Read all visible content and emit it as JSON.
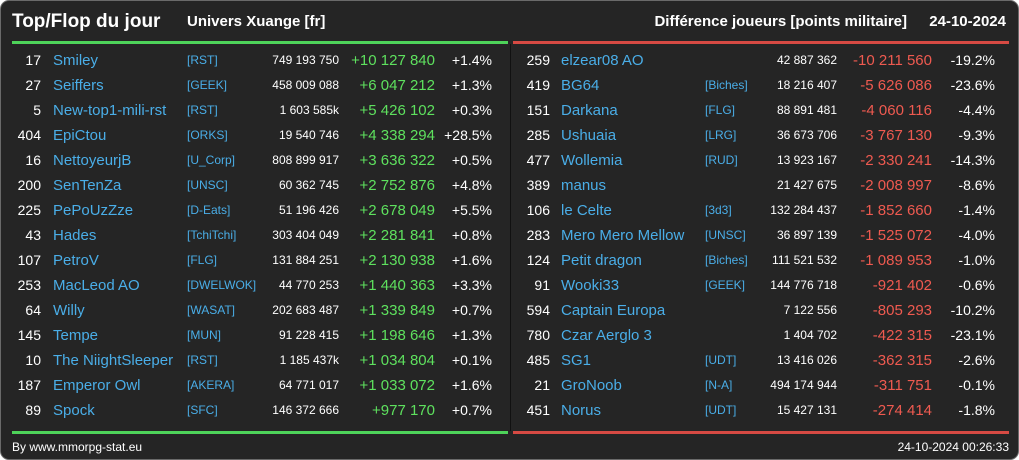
{
  "header": {
    "title": "Top/Flop du jour",
    "universe": "Univers Xuange [fr]",
    "metric": "Différence joueurs [points militaire]",
    "date": "24-10-2024"
  },
  "colors": {
    "gain": "#5ee15e",
    "loss": "#ef5a50",
    "name": "#4aaee8",
    "background": "#252525"
  },
  "top": [
    {
      "rank": "17",
      "name": "Smiley",
      "alliance": "[RST]",
      "total": "749 193 750",
      "diff": "+10 127 840",
      "pct": "+1.4%"
    },
    {
      "rank": "27",
      "name": "Seiffers",
      "alliance": "[GEEK]",
      "total": "458 009 088",
      "diff": "+6 047 212",
      "pct": "+1.3%"
    },
    {
      "rank": "5",
      "name": "New-top1-mili-rst",
      "alliance": "[RST]",
      "total": "1 603 585k",
      "diff": "+5 426 102",
      "pct": "+0.3%"
    },
    {
      "rank": "404",
      "name": "EpiCtou",
      "alliance": "[ORKS]",
      "total": "19 540 746",
      "diff": "+4 338 294",
      "pct": "+28.5%"
    },
    {
      "rank": "16",
      "name": "NettoyeurjB",
      "alliance": "[U_Corp]",
      "total": "808 899 917",
      "diff": "+3 636 322",
      "pct": "+0.5%"
    },
    {
      "rank": "200",
      "name": "SenTenZa",
      "alliance": "[UNSC]",
      "total": "60 362 745",
      "diff": "+2 752 876",
      "pct": "+4.8%"
    },
    {
      "rank": "225",
      "name": "PePoUzZze",
      "alliance": "[D-Eats]",
      "total": "51 196 426",
      "diff": "+2 678 049",
      "pct": "+5.5%"
    },
    {
      "rank": "43",
      "name": "Hades",
      "alliance": "[TchiTchi]",
      "total": "303 404 049",
      "diff": "+2 281 841",
      "pct": "+0.8%"
    },
    {
      "rank": "107",
      "name": "PetroV",
      "alliance": "[FLG]",
      "total": "131 884 251",
      "diff": "+2 130 938",
      "pct": "+1.6%"
    },
    {
      "rank": "253",
      "name": "MacLeod AO",
      "alliance": "[DWELWOK]",
      "total": "44 770 253",
      "diff": "+1 440 363",
      "pct": "+3.3%"
    },
    {
      "rank": "64",
      "name": "Willy",
      "alliance": "[WASAT]",
      "total": "202 683 487",
      "diff": "+1 339 849",
      "pct": "+0.7%"
    },
    {
      "rank": "145",
      "name": "Tempe",
      "alliance": "[MUN]",
      "total": "91 228 415",
      "diff": "+1 198 646",
      "pct": "+1.3%"
    },
    {
      "rank": "10",
      "name": "The NiightSleeper",
      "alliance": "[RST]",
      "total": "1 185 437k",
      "diff": "+1 034 804",
      "pct": "+0.1%"
    },
    {
      "rank": "187",
      "name": "Emperor Owl",
      "alliance": "[AKERA]",
      "total": "64 771 017",
      "diff": "+1 033 072",
      "pct": "+1.6%"
    },
    {
      "rank": "89",
      "name": "Spock",
      "alliance": "[SFC]",
      "total": "146 372 666",
      "diff": "+977 170",
      "pct": "+0.7%"
    }
  ],
  "flop": [
    {
      "rank": "259",
      "name": "elzear08 AO",
      "alliance": "",
      "total": "42 887 362",
      "diff": "-10 211 560",
      "pct": "-19.2%"
    },
    {
      "rank": "419",
      "name": "BG64",
      "alliance": "[Biches]",
      "total": "18 216 407",
      "diff": "-5 626 086",
      "pct": "-23.6%"
    },
    {
      "rank": "151",
      "name": "Darkana",
      "alliance": "[FLG]",
      "total": "88 891 481",
      "diff": "-4 060 116",
      "pct": "-4.4%"
    },
    {
      "rank": "285",
      "name": "Ushuaia",
      "alliance": "[LRG]",
      "total": "36 673 706",
      "diff": "-3 767 130",
      "pct": "-9.3%"
    },
    {
      "rank": "477",
      "name": "Wollemia",
      "alliance": "[RUD]",
      "total": "13 923 167",
      "diff": "-2 330 241",
      "pct": "-14.3%"
    },
    {
      "rank": "389",
      "name": "manus",
      "alliance": "",
      "total": "21 427 675",
      "diff": "-2 008 997",
      "pct": "-8.6%"
    },
    {
      "rank": "106",
      "name": "le Celte",
      "alliance": "[3d3]",
      "total": "132 284 437",
      "diff": "-1 852 660",
      "pct": "-1.4%"
    },
    {
      "rank": "283",
      "name": "Mero Mero Mellow",
      "alliance": "[UNSC]",
      "total": "36 897 139",
      "diff": "-1 525 072",
      "pct": "-4.0%"
    },
    {
      "rank": "124",
      "name": "Petit dragon",
      "alliance": "[Biches]",
      "total": "111 521 532",
      "diff": "-1 089 953",
      "pct": "-1.0%"
    },
    {
      "rank": "91",
      "name": "Wooki33",
      "alliance": "[GEEK]",
      "total": "144 776 718",
      "diff": "-921 402",
      "pct": "-0.6%"
    },
    {
      "rank": "594",
      "name": "Captain Europa",
      "alliance": "",
      "total": "7 122 556",
      "diff": "-805 293",
      "pct": "-10.2%"
    },
    {
      "rank": "780",
      "name": "Czar Aerglo 3",
      "alliance": "",
      "total": "1 404 702",
      "diff": "-422 315",
      "pct": "-23.1%"
    },
    {
      "rank": "485",
      "name": "SG1",
      "alliance": "[UDT]",
      "total": "13 416 026",
      "diff": "-362 315",
      "pct": "-2.6%"
    },
    {
      "rank": "21",
      "name": "GroNoob",
      "alliance": "[N-A]",
      "total": "494 174 944",
      "diff": "-311 751",
      "pct": "-0.1%"
    },
    {
      "rank": "451",
      "name": "Norus",
      "alliance": "[UDT]",
      "total": "15 427 131",
      "diff": "-274 414",
      "pct": "-1.8%"
    }
  ],
  "footer": {
    "source": "By www.mmorpg-stat.eu",
    "timestamp": "24-10-2024 00:26:33"
  }
}
